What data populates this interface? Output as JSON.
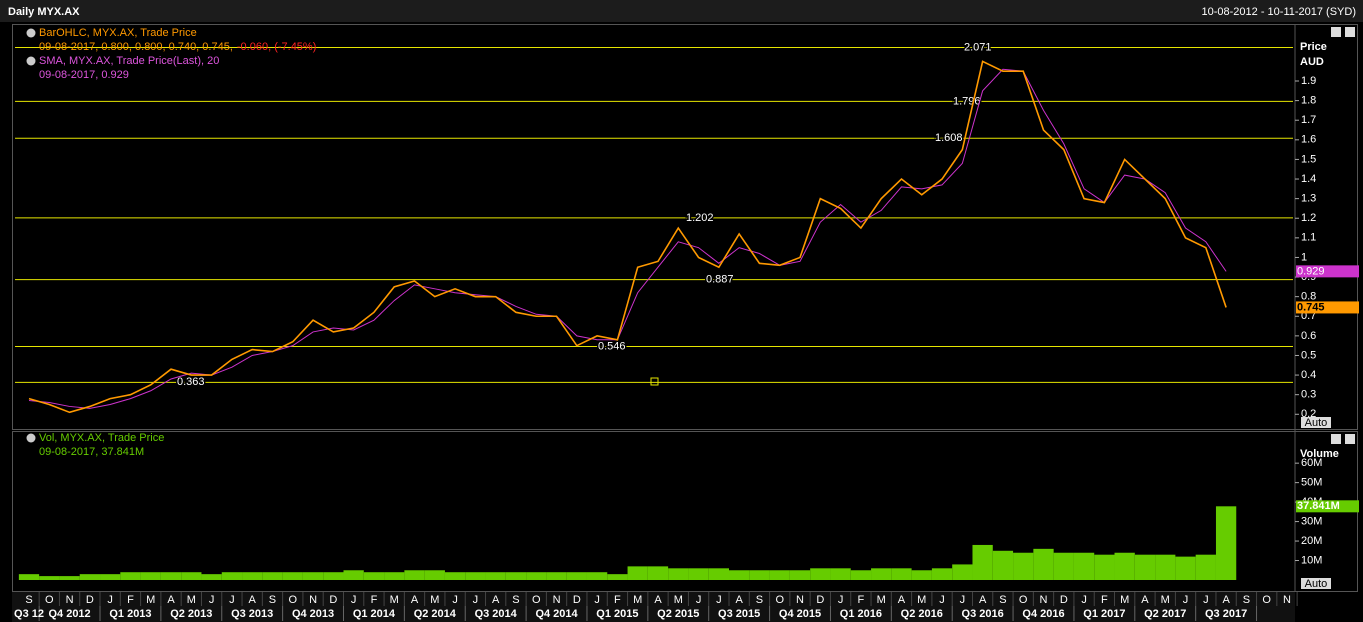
{
  "header": {
    "title": "Daily MYX.AX",
    "range": "10-08-2012 - 10-11-2017 (SYD)"
  },
  "chart_data": [
    {
      "type": "line",
      "categories": [
        "S",
        "O",
        "N",
        "D",
        "J",
        "F",
        "M",
        "A",
        "M",
        "J",
        "J",
        "A",
        "S",
        "O",
        "N",
        "D",
        "J",
        "F",
        "M",
        "A",
        "M",
        "J",
        "J",
        "A",
        "S",
        "O",
        "N",
        "D",
        "J",
        "F",
        "M",
        "A",
        "M",
        "J",
        "J",
        "A",
        "S",
        "O",
        "N",
        "D",
        "J",
        "F",
        "M",
        "A",
        "M",
        "J",
        "J",
        "A",
        "S",
        "O",
        "N",
        "D",
        "J",
        "F",
        "M",
        "A",
        "M",
        "J",
        "J",
        "A",
        "S",
        "O",
        "N"
      ],
      "quarters": [
        "Q3 12",
        "Q4 2012",
        "Q1 2013",
        "Q2 2013",
        "Q3 2013",
        "Q4 2013",
        "Q1 2014",
        "Q2 2014",
        "Q3 2014",
        "Q4 2014",
        "Q1 2015",
        "Q2 2015",
        "Q3 2015",
        "Q4 2015",
        "Q1 2016",
        "Q2 2016",
        "Q3 2016",
        "Q4 2016",
        "Q1 2017",
        "Q2 2017",
        "Q3 2017"
      ],
      "series": [
        {
          "name": "BarOHLC, MYX.AX, Trade Price",
          "color": "#ff9900",
          "legend_detail": "09-08-2017, 0.800, 0.800, 0.740, 0.745,",
          "legend_change": "-0.060, (-7.45%)",
          "values": [
            0.28,
            0.25,
            0.21,
            0.24,
            0.28,
            0.3,
            0.35,
            0.43,
            0.4,
            0.4,
            0.48,
            0.53,
            0.52,
            0.57,
            0.68,
            0.62,
            0.64,
            0.72,
            0.85,
            0.88,
            0.8,
            0.84,
            0.8,
            0.8,
            0.72,
            0.7,
            0.7,
            0.55,
            0.6,
            0.58,
            0.95,
            0.98,
            1.15,
            1.0,
            0.95,
            1.12,
            0.97,
            0.96,
            1.0,
            1.3,
            1.25,
            1.15,
            1.3,
            1.4,
            1.32,
            1.4,
            1.55,
            2.0,
            1.95,
            1.95,
            1.65,
            1.55,
            1.3,
            1.28,
            1.5,
            1.4,
            1.3,
            1.1,
            1.05,
            0.745,
            null,
            null,
            null
          ]
        },
        {
          "name": "SMA, MYX.AX, Trade Price(Last), 20",
          "color": "#cc33cc",
          "legend_detail": "09-08-2017, 0.929",
          "values": [
            0.27,
            0.26,
            0.24,
            0.23,
            0.25,
            0.28,
            0.32,
            0.38,
            0.41,
            0.4,
            0.44,
            0.5,
            0.52,
            0.55,
            0.62,
            0.64,
            0.63,
            0.68,
            0.78,
            0.86,
            0.84,
            0.82,
            0.81,
            0.8,
            0.75,
            0.71,
            0.7,
            0.6,
            0.58,
            0.58,
            0.82,
            0.95,
            1.08,
            1.05,
            0.97,
            1.05,
            1.02,
            0.96,
            0.98,
            1.18,
            1.27,
            1.18,
            1.24,
            1.36,
            1.35,
            1.37,
            1.48,
            1.85,
            1.96,
            1.95,
            1.75,
            1.58,
            1.35,
            1.28,
            1.42,
            1.4,
            1.33,
            1.15,
            1.08,
            0.929,
            null,
            null,
            null
          ]
        }
      ],
      "levels": [
        2.071,
        1.796,
        1.608,
        1.202,
        0.887,
        0.546,
        0.363
      ],
      "level_color": "#e6e600",
      "ylim": [
        0.13,
        2.15
      ],
      "yticks": [
        0.2,
        0.3,
        0.4,
        0.5,
        0.6,
        0.7,
        0.8,
        0.9,
        1,
        1.1,
        1.2,
        1.3,
        1.4,
        1.5,
        1.6,
        1.7,
        1.8,
        1.9
      ],
      "y_axis_title": [
        "Price",
        "AUD"
      ],
      "scale_button": "Auto"
    },
    {
      "type": "bar",
      "series": [
        {
          "name": "Vol, MYX.AX, Trade Price",
          "color": "#66cc00",
          "legend_detail": "09-08-2017, 37.841M",
          "last_label": "37.841M",
          "values": [
            3,
            2,
            2,
            3,
            3,
            4,
            4,
            4,
            4,
            3,
            4,
            4,
            4,
            4,
            4,
            4,
            5,
            4,
            4,
            5,
            5,
            4,
            4,
            4,
            4,
            4,
            4,
            4,
            4,
            3,
            7,
            7,
            6,
            6,
            6,
            5,
            5,
            5,
            5,
            6,
            6,
            5,
            6,
            6,
            5,
            6,
            8,
            18,
            15,
            14,
            16,
            14,
            14,
            13,
            14,
            13,
            13,
            12,
            13,
            37.841,
            null,
            null,
            null
          ]
        }
      ],
      "ylim": [
        0,
        76
      ],
      "yticks": [
        {
          "value": 10,
          "label": "10M"
        },
        {
          "value": 20,
          "label": "20M"
        },
        {
          "value": 30,
          "label": "30M"
        },
        {
          "value": 40,
          "label": "40M"
        },
        {
          "value": 50,
          "label": "50M"
        },
        {
          "value": 60,
          "label": "60M"
        }
      ],
      "y_axis_title": "Volume",
      "scale_button": "Auto"
    }
  ]
}
